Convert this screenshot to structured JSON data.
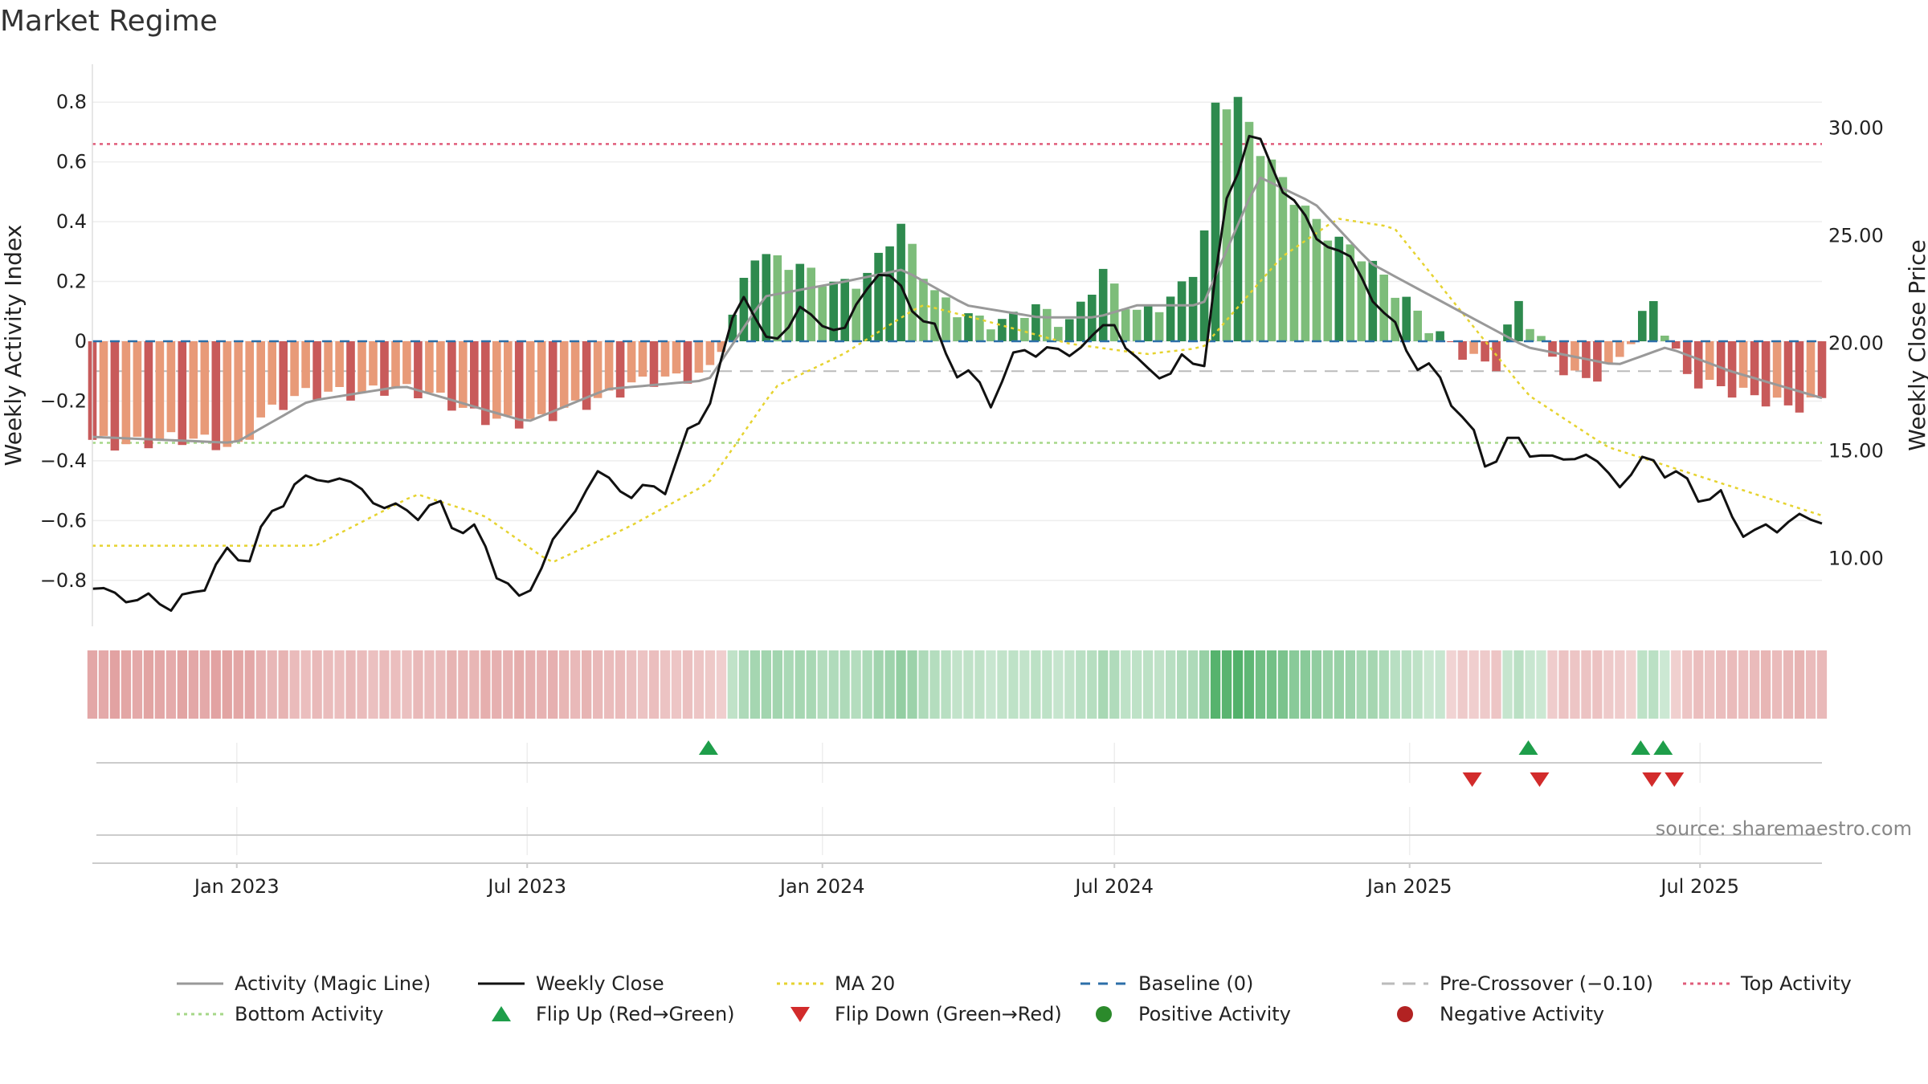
{
  "title": "Market Regime",
  "source": "source: sharemaestro.com",
  "chart_data": {
    "type": "bar+line",
    "title": "Market Regime",
    "ylabel_left": "Weekly Activity Index",
    "ylabel_right": "Weekly Close Price",
    "ylim_left": [
      -0.9,
      0.9
    ],
    "ylim_right": [
      7.6,
      32.6
    ],
    "yticks_left": [
      "0.8",
      "0.6",
      "0.4",
      "0.2",
      "0",
      "−0.2",
      "−0.4",
      "−0.6",
      "−0.8"
    ],
    "yticks_left_values": [
      0.8,
      0.6,
      0.4,
      0.2,
      0,
      -0.2,
      -0.4,
      -0.6,
      -0.8
    ],
    "yticks_right": [
      "30.00",
      "25.00",
      "20.00",
      "15.00",
      "10.00"
    ],
    "yticks_right_values": [
      30,
      25,
      20,
      15,
      10
    ],
    "x_start": "2022-10-03",
    "x_end": "2025-09-15",
    "xticks": [
      {
        "date": "2023-01-01",
        "label": "Jan 2023"
      },
      {
        "date": "2023-07-01",
        "label": "Jul 2023"
      },
      {
        "date": "2024-01-01",
        "label": "Jan 2024"
      },
      {
        "date": "2024-07-01",
        "label": "Jul 2024"
      },
      {
        "date": "2025-01-01",
        "label": "Jan 2025"
      },
      {
        "date": "2025-07-01",
        "label": "Jul 2025"
      }
    ],
    "activity_anchors": [
      [
        "2022-10-03",
        -0.33
      ],
      [
        "2022-10-31",
        -0.33
      ],
      [
        "2022-11-28",
        -0.34
      ],
      [
        "2022-12-19",
        -0.34
      ],
      [
        "2023-01-01",
        -0.35
      ],
      [
        "2023-01-15",
        -0.25
      ],
      [
        "2023-02-05",
        -0.2
      ],
      [
        "2023-03-05",
        -0.17
      ],
      [
        "2023-04-02",
        -0.15
      ],
      [
        "2023-04-30",
        -0.19
      ],
      [
        "2023-05-28",
        -0.23
      ],
      [
        "2023-06-25",
        -0.27
      ],
      [
        "2023-07-09",
        -0.28
      ],
      [
        "2023-08-06",
        -0.2
      ],
      [
        "2023-09-03",
        -0.14
      ],
      [
        "2023-10-01",
        -0.14
      ],
      [
        "2023-10-22",
        -0.1
      ],
      [
        "2023-11-05",
        0.08
      ],
      [
        "2023-11-19",
        0.3
      ],
      [
        "2023-12-03",
        0.26
      ],
      [
        "2023-12-17",
        0.24
      ],
      [
        "2024-01-07",
        0.2
      ],
      [
        "2024-01-28",
        0.22
      ],
      [
        "2024-02-18",
        0.38
      ],
      [
        "2024-03-10",
        0.16
      ],
      [
        "2024-03-31",
        0.1
      ],
      [
        "2024-04-21",
        0.06
      ],
      [
        "2024-05-12",
        0.1
      ],
      [
        "2024-06-02",
        0.06
      ],
      [
        "2024-06-23",
        0.25
      ],
      [
        "2024-07-14",
        0.08
      ],
      [
        "2024-08-04",
        0.12
      ],
      [
        "2024-08-25",
        0.3
      ],
      [
        "2024-09-01",
        0.8
      ],
      [
        "2024-09-15",
        0.82
      ],
      [
        "2024-09-29",
        0.64
      ],
      [
        "2024-10-20",
        0.48
      ],
      [
        "2024-11-10",
        0.38
      ],
      [
        "2024-12-01",
        0.3
      ],
      [
        "2024-12-22",
        0.16
      ],
      [
        "2025-01-12",
        0.06
      ],
      [
        "2025-02-02",
        -0.02
      ],
      [
        "2025-02-23",
        -0.1
      ],
      [
        "2025-03-09",
        0.12
      ],
      [
        "2025-03-30",
        -0.05
      ],
      [
        "2025-04-20",
        -0.12
      ],
      [
        "2025-05-11",
        -0.08
      ],
      [
        "2025-06-01",
        0.13
      ],
      [
        "2025-06-22",
        -0.1
      ],
      [
        "2025-07-13",
        -0.15
      ],
      [
        "2025-08-03",
        -0.2
      ],
      [
        "2025-08-24",
        -0.22
      ],
      [
        "2025-09-15",
        -0.18
      ]
    ],
    "magic_line_anchors": [
      [
        "2022-10-03",
        -0.32
      ],
      [
        "2022-12-31",
        -0.34
      ],
      [
        "2023-02-15",
        -0.2
      ],
      [
        "2023-04-15",
        -0.15
      ],
      [
        "2023-07-01",
        -0.27
      ],
      [
        "2023-08-20",
        -0.16
      ],
      [
        "2023-10-22",
        -0.13
      ],
      [
        "2023-11-26",
        0.15
      ],
      [
        "2024-01-15",
        0.2
      ],
      [
        "2024-02-20",
        0.24
      ],
      [
        "2024-03-31",
        0.12
      ],
      [
        "2024-05-15",
        0.08
      ],
      [
        "2024-06-20",
        0.08
      ],
      [
        "2024-07-15",
        0.12
      ],
      [
        "2024-08-25",
        0.12
      ],
      [
        "2024-09-29",
        0.55
      ],
      [
        "2024-11-03",
        0.46
      ],
      [
        "2024-12-08",
        0.26
      ],
      [
        "2025-01-15",
        0.15
      ],
      [
        "2025-03-15",
        -0.02
      ],
      [
        "2025-05-10",
        -0.08
      ],
      [
        "2025-06-10",
        -0.02
      ],
      [
        "2025-07-20",
        -0.1
      ],
      [
        "2025-09-15",
        -0.19
      ]
    ],
    "close_anchors": [
      [
        "2022-10-03",
        8.6
      ],
      [
        "2022-11-06",
        8.0
      ],
      [
        "2022-12-04",
        8.0
      ],
      [
        "2022-12-18",
        9.8
      ],
      [
        "2023-01-08",
        10.2
      ],
      [
        "2023-02-05",
        13.5
      ],
      [
        "2023-03-05",
        13.8
      ],
      [
        "2023-04-09",
        12.2
      ],
      [
        "2023-05-07",
        12.3
      ],
      [
        "2023-06-04",
        10.7
      ],
      [
        "2023-06-25",
        7.8
      ],
      [
        "2023-07-16",
        10.5
      ],
      [
        "2023-08-13",
        14.0
      ],
      [
        "2023-09-03",
        13.0
      ],
      [
        "2023-09-24",
        13.3
      ],
      [
        "2023-10-29",
        18.5
      ],
      [
        "2023-11-12",
        22.9
      ],
      [
        "2023-11-26",
        19.8
      ],
      [
        "2023-12-17",
        21.5
      ],
      [
        "2024-01-14",
        20.5
      ],
      [
        "2024-02-04",
        23.5
      ],
      [
        "2024-02-25",
        22.0
      ],
      [
        "2024-03-24",
        19.0
      ],
      [
        "2024-04-14",
        17.4
      ],
      [
        "2024-05-05",
        19.8
      ],
      [
        "2024-06-02",
        19.5
      ],
      [
        "2024-06-30",
        21.0
      ],
      [
        "2024-07-21",
        18.5
      ],
      [
        "2024-08-11",
        19.0
      ],
      [
        "2024-08-25",
        19.0
      ],
      [
        "2024-09-08",
        26.0
      ],
      [
        "2024-09-22",
        30.0
      ],
      [
        "2024-10-13",
        27.5
      ],
      [
        "2024-11-03",
        25.0
      ],
      [
        "2024-11-24",
        24.0
      ],
      [
        "2024-12-15",
        21.5
      ],
      [
        "2025-01-05",
        19.2
      ],
      [
        "2025-01-26",
        17.8
      ],
      [
        "2025-02-16",
        14.5
      ],
      [
        "2025-03-09",
        15.5
      ],
      [
        "2025-03-30",
        14.5
      ],
      [
        "2025-04-20",
        14.9
      ],
      [
        "2025-05-11",
        13.5
      ],
      [
        "2025-06-01",
        14.7
      ],
      [
        "2025-06-22",
        13.4
      ],
      [
        "2025-07-13",
        12.7
      ],
      [
        "2025-08-03",
        11.0
      ],
      [
        "2025-08-24",
        11.8
      ],
      [
        "2025-09-15",
        11.8
      ]
    ],
    "ma20_anchors": [
      [
        "2022-10-03",
        10.6
      ],
      [
        "2023-02-19",
        10.6
      ],
      [
        "2023-04-23",
        13.0
      ],
      [
        "2023-06-04",
        12.0
      ],
      [
        "2023-07-16",
        9.8
      ],
      [
        "2023-09-03",
        11.5
      ],
      [
        "2023-10-22",
        13.5
      ],
      [
        "2023-12-03",
        18.0
      ],
      [
        "2024-01-14",
        19.5
      ],
      [
        "2024-03-03",
        21.8
      ],
      [
        "2024-04-14",
        21.0
      ],
      [
        "2024-06-02",
        20.0
      ],
      [
        "2024-07-21",
        19.5
      ],
      [
        "2024-08-25",
        19.8
      ],
      [
        "2024-10-13",
        24.0
      ],
      [
        "2024-11-17",
        25.8
      ],
      [
        "2024-12-22",
        25.4
      ],
      [
        "2025-02-02",
        21.5
      ],
      [
        "2025-03-16",
        17.6
      ],
      [
        "2025-05-04",
        15.2
      ],
      [
        "2025-07-06",
        13.7
      ],
      [
        "2025-09-15",
        12.0
      ]
    ],
    "baseline": 0,
    "pre_crossover": -0.1,
    "top_activity": 0.66,
    "bottom_activity": -0.34,
    "flip_up": [
      "2023-10-22",
      "2025-03-16",
      "2025-05-25",
      "2025-06-08"
    ],
    "flip_down": [
      "2025-02-09",
      "2025-03-23",
      "2025-06-01",
      "2025-06-15"
    ],
    "legend": [
      {
        "label": "Activity (Magic Line)",
        "kind": "line",
        "color": "#999999",
        "dash": ""
      },
      {
        "label": "Weekly Close",
        "kind": "line",
        "color": "#111111",
        "dash": ""
      },
      {
        "label": "MA 20",
        "kind": "line",
        "color": "#e6d330",
        "dash": "4,5"
      },
      {
        "label": "Baseline (0)",
        "kind": "line",
        "color": "#2c6fa8",
        "dash": "12,10"
      },
      {
        "label": "Pre-Crossover (−0.10)",
        "kind": "line",
        "color": "#bbbbbb",
        "dash": "16,10"
      },
      {
        "label": "Top Activity",
        "kind": "line",
        "color": "#e05c7a",
        "dash": "4,5"
      },
      {
        "label": "Bottom Activity",
        "kind": "line",
        "color": "#a6d788",
        "dash": "4,5"
      },
      {
        "label": "Flip Up (Red→Green)",
        "kind": "tri-up",
        "color": "#1e9e4a",
        "dash": ""
      },
      {
        "label": "Flip Down (Green→Red)",
        "kind": "tri-down",
        "color": "#d22b2b",
        "dash": ""
      },
      {
        "label": "Positive Activity",
        "kind": "dot",
        "color": "#2b8a2b",
        "dash": ""
      },
      {
        "label": "Negative Activity",
        "kind": "dot",
        "color": "#b22222",
        "dash": ""
      }
    ]
  },
  "colors": {
    "pos_strong": "#2e8a4e",
    "pos_light": "#7dbd7a",
    "neg_strong": "#c85a5a",
    "neg_light": "#e89a78",
    "close": "#111111",
    "magic": "#999999",
    "ma20": "#e6d330",
    "top": "#e05c7a",
    "bottom": "#a6d788",
    "baseline": "#2c6fa8",
    "pre": "#bbbbbb",
    "flip_up": "#1e9e4a",
    "flip_down": "#d22b2b"
  }
}
